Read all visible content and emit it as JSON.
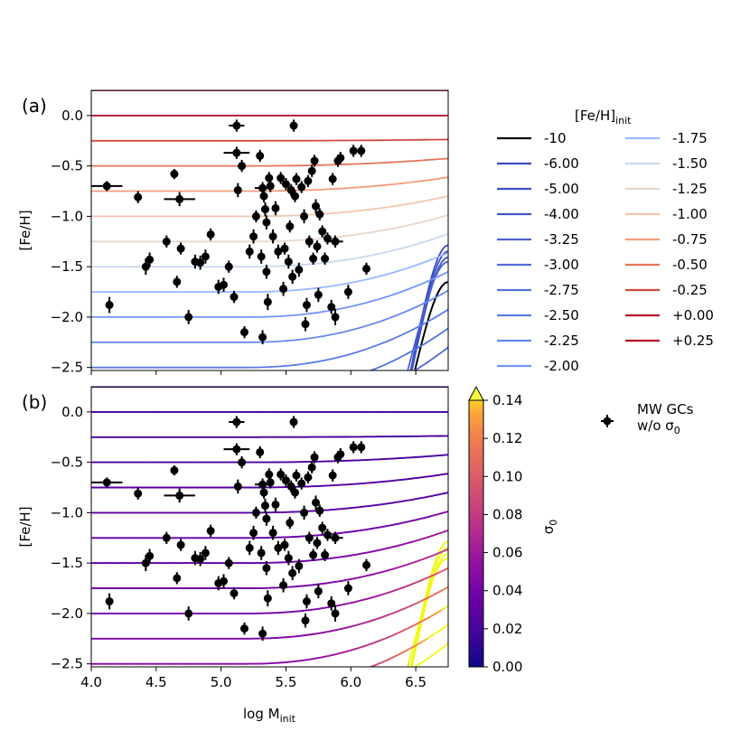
{
  "figure": {
    "panel_a_label": "(a)",
    "panel_b_label": "(b)",
    "xlabel_main": "log M",
    "xlabel_sub": "init",
    "ylabel": "[Fe/H]",
    "legend_title_main": "[Fe/H]",
    "legend_title_sub": "init",
    "colorbar_label_main": "σ",
    "colorbar_label_sub": "0",
    "gc_legend_line1": "MW GCs",
    "gc_legend_line2_main": "w/o σ",
    "gc_legend_line2_sub": "0"
  },
  "chart_data": [
    {
      "type": "line",
      "panel": "a",
      "title": "(a)",
      "xlabel": "log Minit",
      "ylabel": "[Fe/H]",
      "xlim": [
        4.0,
        6.75
      ],
      "ylim": [
        -2.53,
        0.25
      ],
      "xticks": [
        4.0,
        4.5,
        5.0,
        5.5,
        6.0,
        6.5
      ],
      "yticks": [
        0.0,
        -0.5,
        -1.0,
        -1.5,
        -2.0,
        -2.5
      ],
      "ytick_labels": [
        "0.0",
        "−0.5",
        "−1.0",
        "−1.5",
        "−2.0",
        "−2.5"
      ],
      "xticks_labeled": false,
      "legend_title": "[Fe/H]init",
      "legend_location": "right",
      "series": [
        {
          "name": "-10",
          "value": -10,
          "color": "#000000"
        },
        {
          "name": "-6.00",
          "value": -6.0,
          "color": "#3b4cc0"
        },
        {
          "name": "-5.00",
          "value": -5.0,
          "color": "#3d50c3"
        },
        {
          "name": "-4.00",
          "value": -4.0,
          "color": "#4055c8"
        },
        {
          "name": "-3.25",
          "value": -3.25,
          "color": "#4a63d3"
        },
        {
          "name": "-3.00",
          "value": -3.0,
          "color": "#4f69d9"
        },
        {
          "name": "-2.75",
          "value": -2.75,
          "color": "#5572df"
        },
        {
          "name": "-2.50",
          "value": -2.5,
          "color": "#5b7be5"
        },
        {
          "name": "-2.25",
          "value": -2.25,
          "color": "#6788ee"
        },
        {
          "name": "-2.00",
          "value": -2.0,
          "color": "#7396f5"
        },
        {
          "name": "-1.75",
          "value": -1.75,
          "color": "#9ab8ff"
        },
        {
          "name": "-1.50",
          "value": -1.5,
          "color": "#c9d7f0"
        },
        {
          "name": "-1.25",
          "value": -1.25,
          "color": "#e8d6cc"
        },
        {
          "name": "-1.00",
          "value": -1.0,
          "color": "#f4c5ad"
        },
        {
          "name": "-0.75",
          "value": -0.75,
          "color": "#f39c7b"
        },
        {
          "name": "-0.50",
          "value": -0.5,
          "color": "#e67459"
        },
        {
          "name": "-0.25",
          "value": -0.25,
          "color": "#d1493f"
        },
        {
          "name": "+0.00",
          "value": 0.0,
          "color": "#b40426"
        },
        {
          "name": "+0.25",
          "value": 0.25,
          "color": "#b40426"
        }
      ]
    },
    {
      "type": "line",
      "panel": "b",
      "title": "(b)",
      "xlabel": "log Minit",
      "ylabel": "[Fe/H]",
      "xlim": [
        4.0,
        6.75
      ],
      "ylim": [
        -2.53,
        0.25
      ],
      "xticks": [
        4.0,
        4.5,
        5.0,
        5.5,
        6.0,
        6.5
      ],
      "xtick_labels": [
        "4.0",
        "4.5",
        "5.0",
        "5.5",
        "6.0",
        "6.5"
      ],
      "yticks": [
        0.0,
        -0.5,
        -1.0,
        -1.5,
        -2.0,
        -2.5
      ],
      "ytick_labels": [
        "0.0",
        "−0.5",
        "−1.0",
        "−1.5",
        "−2.0",
        "−2.5"
      ],
      "color_encoding": "sigma0 (plasma colormap)",
      "colorbar": {
        "label": "σ0",
        "range": [
          0.0,
          0.14
        ],
        "ticks": [
          0.0,
          0.02,
          0.04,
          0.06,
          0.08,
          0.1,
          0.12,
          0.14
        ],
        "tick_labels": [
          "0.00",
          "0.02",
          "0.04",
          "0.06",
          "0.08",
          "0.10",
          "0.12",
          "0.14"
        ],
        "extend": "max"
      }
    },
    {
      "type": "scatter",
      "name": "MW GCs w/o σ0",
      "legend_label": "MW GCs w/o σ0",
      "shown_in": [
        "a",
        "b"
      ],
      "color": "#000000",
      "points": [
        [
          4.12,
          -0.7,
          0.12,
          0.05
        ],
        [
          4.14,
          -1.88,
          0.0,
          0.08
        ],
        [
          4.36,
          -0.81,
          0.0,
          0.06
        ],
        [
          4.42,
          -1.5,
          0.0,
          0.08
        ],
        [
          4.45,
          -1.43,
          0.0,
          0.07
        ],
        [
          4.58,
          -1.25,
          0.0,
          0.06
        ],
        [
          4.64,
          -0.58,
          0.0,
          0.05
        ],
        [
          4.66,
          -1.65,
          0.0,
          0.06
        ],
        [
          4.68,
          -0.83,
          0.12,
          0.07
        ],
        [
          4.69,
          -1.32,
          0.0,
          0.06
        ],
        [
          4.75,
          -2.0,
          0.0,
          0.07
        ],
        [
          4.8,
          -1.45,
          0.0,
          0.07
        ],
        [
          4.84,
          -1.46,
          0.0,
          0.07
        ],
        [
          4.88,
          -1.4,
          0.0,
          0.07
        ],
        [
          4.92,
          -1.18,
          0.0,
          0.06
        ],
        [
          4.98,
          -1.7,
          0.0,
          0.07
        ],
        [
          5.02,
          -1.68,
          0.0,
          0.07
        ],
        [
          5.06,
          -1.5,
          0.0,
          0.06
        ],
        [
          5.1,
          -1.8,
          0.0,
          0.06
        ],
        [
          5.12,
          -0.1,
          0.06,
          0.06
        ],
        [
          5.12,
          -0.37,
          0.1,
          0.06
        ],
        [
          5.13,
          -0.74,
          0.0,
          0.07
        ],
        [
          5.16,
          -0.5,
          0.0,
          0.06
        ],
        [
          5.18,
          -2.15,
          0.0,
          0.06
        ],
        [
          5.22,
          -1.35,
          0.0,
          0.07
        ],
        [
          5.25,
          -1.2,
          0.0,
          0.07
        ],
        [
          5.27,
          -1.0,
          0.0,
          0.06
        ],
        [
          5.3,
          -0.4,
          0.0,
          0.06
        ],
        [
          5.31,
          -1.4,
          0.0,
          0.07
        ],
        [
          5.32,
          -2.2,
          0.0,
          0.07
        ],
        [
          5.32,
          -0.72,
          0.06,
          0.06
        ],
        [
          5.33,
          -0.8,
          0.0,
          0.06
        ],
        [
          5.34,
          -0.93,
          0.0,
          0.07
        ],
        [
          5.35,
          -1.06,
          0.0,
          0.07
        ],
        [
          5.35,
          -1.55,
          0.0,
          0.07
        ],
        [
          5.36,
          -1.85,
          0.0,
          0.08
        ],
        [
          5.37,
          -0.62,
          0.0,
          0.06
        ],
        [
          5.38,
          -0.7,
          0.0,
          0.06
        ],
        [
          5.4,
          -1.2,
          0.0,
          0.07
        ],
        [
          5.42,
          -0.92,
          0.0,
          0.07
        ],
        [
          5.44,
          -1.35,
          0.0,
          0.07
        ],
        [
          5.46,
          -0.62,
          0.0,
          0.06
        ],
        [
          5.48,
          -1.72,
          0.0,
          0.07
        ],
        [
          5.49,
          -1.32,
          0.0,
          0.06
        ],
        [
          5.5,
          -0.68,
          0.0,
          0.06
        ],
        [
          5.52,
          -1.45,
          0.0,
          0.07
        ],
        [
          5.53,
          -1.1,
          0.0,
          0.06
        ],
        [
          5.54,
          -0.74,
          0.0,
          0.06
        ],
        [
          5.55,
          -1.6,
          0.0,
          0.07
        ],
        [
          5.56,
          -0.1,
          0.0,
          0.06
        ],
        [
          5.57,
          -0.8,
          0.0,
          0.06
        ],
        [
          5.58,
          -0.63,
          0.0,
          0.06
        ],
        [
          5.6,
          -1.53,
          0.0,
          0.07
        ],
        [
          5.62,
          -0.71,
          0.0,
          0.06
        ],
        [
          5.64,
          -1.0,
          0.0,
          0.07
        ],
        [
          5.65,
          -2.07,
          0.0,
          0.07
        ],
        [
          5.66,
          -1.88,
          0.0,
          0.07
        ],
        [
          5.67,
          -0.65,
          0.0,
          0.06
        ],
        [
          5.68,
          -1.25,
          0.0,
          0.06
        ],
        [
          5.7,
          -0.55,
          0.0,
          0.06
        ],
        [
          5.71,
          -1.42,
          0.0,
          0.06
        ],
        [
          5.72,
          -0.45,
          0.0,
          0.06
        ],
        [
          5.73,
          -0.9,
          0.0,
          0.07
        ],
        [
          5.74,
          -1.3,
          0.0,
          0.06
        ],
        [
          5.75,
          -1.78,
          0.0,
          0.07
        ],
        [
          5.76,
          -0.98,
          0.0,
          0.06
        ],
        [
          5.78,
          -1.15,
          0.0,
          0.06
        ],
        [
          5.8,
          -1.42,
          0.0,
          0.06
        ],
        [
          5.82,
          -1.22,
          0.0,
          0.06
        ],
        [
          5.85,
          -1.9,
          0.0,
          0.07
        ],
        [
          5.86,
          -0.63,
          0.0,
          0.06
        ],
        [
          5.88,
          -2.0,
          0.0,
          0.08
        ],
        [
          5.88,
          -1.25,
          0.06,
          0.06
        ],
        [
          5.9,
          -0.45,
          0.0,
          0.06
        ],
        [
          5.92,
          -0.42,
          0.0,
          0.06
        ],
        [
          5.98,
          -1.75,
          0.0,
          0.07
        ],
        [
          6.02,
          -0.35,
          0.0,
          0.06
        ],
        [
          6.08,
          -0.35,
          0.0,
          0.06
        ],
        [
          6.12,
          -1.52,
          0.0,
          0.06
        ]
      ]
    }
  ]
}
